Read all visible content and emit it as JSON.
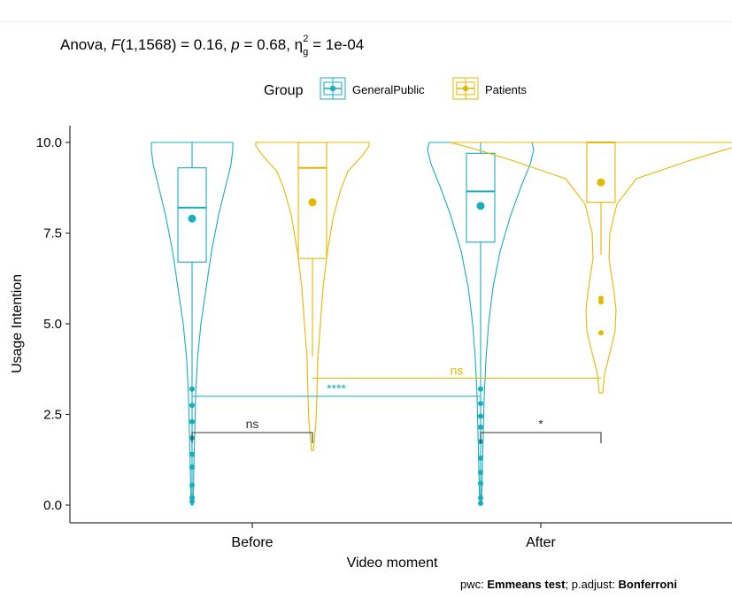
{
  "chart_data": {
    "type": "violin",
    "subtitle": {
      "prefix": "Anova, ",
      "F": "F",
      "f_args": "(1,1568) = 0.16, ",
      "p": "p",
      "p_val": " = 0.68, ",
      "eta": "η",
      "eta_sub": "g",
      "eta_sup": "2",
      "eta_val": " = 1e-04"
    },
    "legend": {
      "title": "Group",
      "placement": "top",
      "items": [
        "GeneralPublic",
        "Patients"
      ]
    },
    "xlabel": "Video moment",
    "ylabel": "Usage Intention",
    "ylim": [
      -0.5,
      10.4
    ],
    "yticks": [
      "0.0",
      "2.5",
      "5.0",
      "7.5",
      "10.0"
    ],
    "categories": [
      "Before",
      "After"
    ],
    "colors": {
      "GeneralPublic": "#17aebf",
      "Patients": "#e7b800",
      "bracket": "#333333"
    },
    "series": [
      {
        "name": "GeneralPublic",
        "groups": [
          {
            "category": "Before",
            "box": {
              "lower": 0.0,
              "q1": 6.7,
              "median": 8.2,
              "q3": 9.3,
              "upper": 10.0
            },
            "mean": 7.9,
            "outliers": [
              0.1,
              0.2,
              0.55,
              1.05,
              1.4,
              1.85,
              2.3,
              2.75,
              3.2
            ]
          },
          {
            "category": "After",
            "box": {
              "lower": 0.0,
              "q1": 7.25,
              "median": 8.65,
              "q3": 9.7,
              "upper": 10.0
            },
            "mean": 8.25,
            "outliers": [
              0.05,
              0.2,
              0.6,
              0.9,
              1.3,
              1.75,
              2.15,
              2.45,
              2.8,
              3.2
            ]
          }
        ]
      },
      {
        "name": "Patients",
        "groups": [
          {
            "category": "Before",
            "box": {
              "lower": 4.1,
              "q1": 6.8,
              "median": 9.3,
              "q3": 10.0,
              "upper": 10.0
            },
            "mean": 8.35,
            "outliers": []
          },
          {
            "category": "After",
            "box": {
              "lower": 6.9,
              "q1": 8.35,
              "median": 10.0,
              "q3": 10.0,
              "upper": 10.0
            },
            "mean": 8.9,
            "outliers": [
              4.75,
              5.6,
              5.7
            ]
          }
        ]
      }
    ],
    "comparisons": [
      {
        "label": "ns",
        "within": "Before",
        "y": 2.0,
        "color": "#333333"
      },
      {
        "label": "*",
        "within": "After",
        "y": 2.0,
        "color": "#333333"
      },
      {
        "label": "****",
        "series": "GeneralPublic",
        "y": 3.0,
        "color": "#17aebf"
      },
      {
        "label": "ns",
        "series": "Patients",
        "y": 3.5,
        "color": "#e7b800"
      }
    ]
  },
  "footer": {
    "pwc_prefix": "pwc: ",
    "pwc_method": "Emmeans test",
    "adjust_prefix": "; p.adjust: ",
    "adjust_method": "Bonferroni"
  }
}
